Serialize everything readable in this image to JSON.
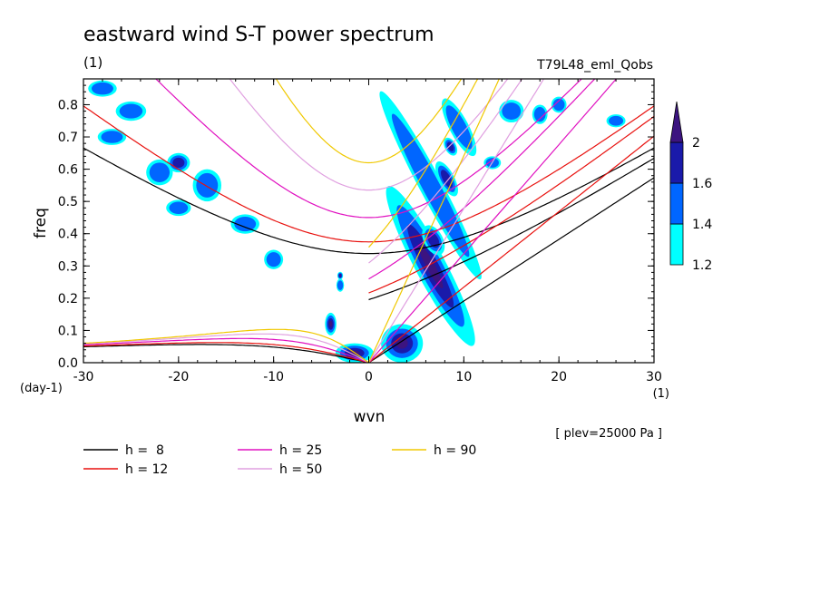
{
  "title": "eastward wind S-T power spectrum",
  "subtitle_left": "(1)",
  "subtitle_right": "T79L48_eml_Qobs",
  "plev_note": "[ plev=25000 Pa ]",
  "chart_data": {
    "type": "heatmap",
    "xlabel": "wvn",
    "x_unit": "(1)",
    "ylabel": "freq",
    "y_unit": "(day-1)",
    "xlim": [
      -30,
      30
    ],
    "ylim": [
      0,
      0.88
    ],
    "x_ticks": [
      -30,
      -20,
      -10,
      0,
      10,
      20,
      30
    ],
    "y_ticks": [
      0,
      0.1,
      0.2,
      0.3,
      0.4,
      0.5,
      0.6,
      0.7,
      0.8
    ],
    "x_tick_labels": [
      "-30",
      "-20",
      "-10",
      "0",
      "10",
      "20",
      "30"
    ],
    "y_tick_labels": [
      "0.0",
      "0.1",
      "0.2",
      "0.3",
      "0.4",
      "0.5",
      "0.6",
      "0.7",
      "0.8"
    ],
    "colorbar": {
      "levels": [
        1.2,
        1.4,
        1.6,
        2
      ],
      "labels": [
        "1.2",
        "1.4",
        "1.6",
        "2"
      ],
      "colors": [
        "#00ffff",
        "#0066ff",
        "#1a1aaa",
        "#3c1480"
      ]
    },
    "dispersion_curves": [
      {
        "name": "h =  8",
        "h": 8,
        "color": "#000000"
      },
      {
        "name": "h = 12",
        "h": 12,
        "color": "#e8110e"
      },
      {
        "name": "h = 25",
        "h": 25,
        "color": "#e010c0"
      },
      {
        "name": "h = 50",
        "h": 50,
        "color": "#e0a0e0"
      },
      {
        "name": "h = 90",
        "h": 90,
        "color": "#f0c800"
      }
    ],
    "power_regions": [
      {
        "x": 6.5,
        "y": 0.55,
        "rx": 1.2,
        "ry": 0.33,
        "level": 1,
        "band": "kelvin"
      },
      {
        "x": 6.5,
        "y": 0.3,
        "rx": 1.6,
        "ry": 0.28,
        "level": 3,
        "band": "kelvin"
      },
      {
        "x": 6.8,
        "y": 0.38,
        "rx": 1.0,
        "ry": 0.05,
        "level": 2,
        "band": "kelvin"
      },
      {
        "x": 8.2,
        "y": 0.57,
        "rx": 0.8,
        "ry": 0.06,
        "level": 2,
        "band": "kelvin"
      },
      {
        "x": 8.6,
        "y": 0.67,
        "rx": 0.6,
        "ry": 0.03,
        "level": 2,
        "band": "kelvin"
      },
      {
        "x": 9.5,
        "y": 0.73,
        "rx": 1.0,
        "ry": 0.1,
        "level": 1,
        "band": "kelvin"
      },
      {
        "x": 3.5,
        "y": 0.06,
        "rx": 2.2,
        "ry": 0.06,
        "level": 3,
        "band": "low"
      },
      {
        "x": -1.5,
        "y": 0.03,
        "rx": 2.0,
        "ry": 0.03,
        "level": 3,
        "band": "low"
      },
      {
        "x": -4.0,
        "y": 0.12,
        "rx": 0.6,
        "ry": 0.035,
        "level": 3,
        "band": "low"
      },
      {
        "x": -3.0,
        "y": 0.24,
        "rx": 0.4,
        "ry": 0.02,
        "level": 1,
        "band": "low"
      },
      {
        "x": -3.0,
        "y": 0.27,
        "rx": 0.3,
        "ry": 0.012,
        "level": 3,
        "band": "low"
      },
      {
        "x": -22,
        "y": 0.59,
        "rx": 1.4,
        "ry": 0.04,
        "level": 1,
        "band": "west"
      },
      {
        "x": -20,
        "y": 0.62,
        "rx": 1.2,
        "ry": 0.03,
        "level": 2,
        "band": "west"
      },
      {
        "x": -17,
        "y": 0.55,
        "rx": 1.5,
        "ry": 0.05,
        "level": 1,
        "band": "west"
      },
      {
        "x": -13,
        "y": 0.43,
        "rx": 1.5,
        "ry": 0.03,
        "level": 1,
        "band": "west"
      },
      {
        "x": -25,
        "y": 0.78,
        "rx": 1.6,
        "ry": 0.03,
        "level": 1,
        "band": "west"
      },
      {
        "x": -27,
        "y": 0.7,
        "rx": 1.5,
        "ry": 0.025,
        "level": 1,
        "band": "west"
      },
      {
        "x": -28,
        "y": 0.85,
        "rx": 1.5,
        "ry": 0.025,
        "level": 1,
        "band": "west"
      },
      {
        "x": -20,
        "y": 0.48,
        "rx": 1.3,
        "ry": 0.025,
        "level": 1,
        "band": "west"
      },
      {
        "x": -10,
        "y": 0.32,
        "rx": 1.0,
        "ry": 0.03,
        "level": 1,
        "band": "west"
      },
      {
        "x": 15,
        "y": 0.78,
        "rx": 1.3,
        "ry": 0.035,
        "level": 1,
        "band": "east"
      },
      {
        "x": 18,
        "y": 0.77,
        "rx": 0.8,
        "ry": 0.03,
        "level": 1,
        "band": "east"
      },
      {
        "x": 20,
        "y": 0.8,
        "rx": 0.8,
        "ry": 0.025,
        "level": 1,
        "band": "east"
      },
      {
        "x": 26,
        "y": 0.75,
        "rx": 1.0,
        "ry": 0.02,
        "level": 1,
        "band": "east"
      },
      {
        "x": 13,
        "y": 0.62,
        "rx": 0.9,
        "ry": 0.02,
        "level": 1,
        "band": "east"
      }
    ]
  }
}
